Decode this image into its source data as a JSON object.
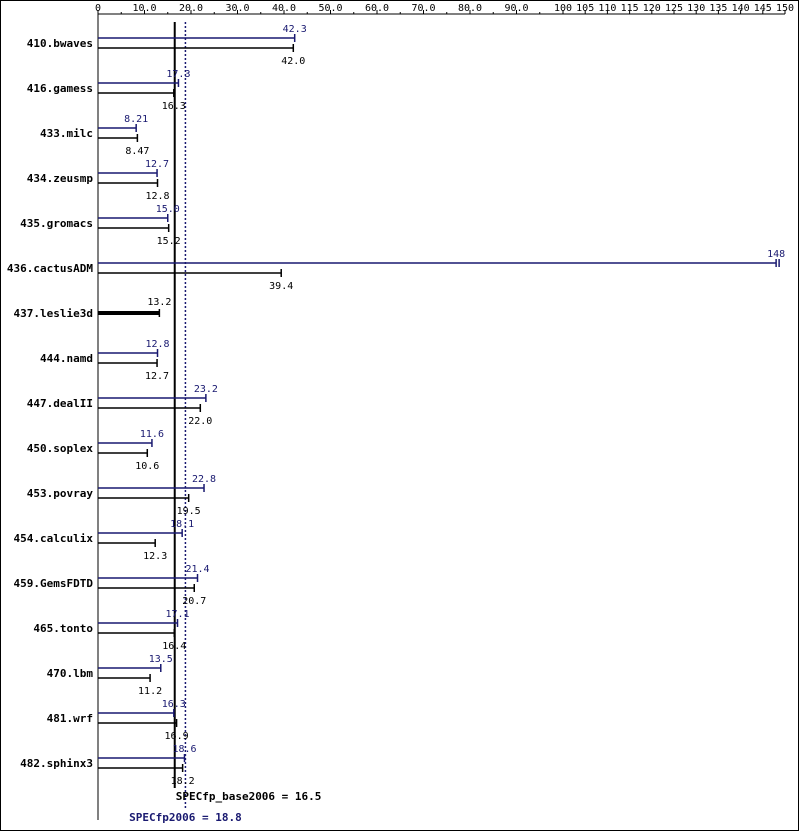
{
  "chart_data": {
    "type": "bar",
    "orientation": "horizontal",
    "x_ticks": [
      0,
      10.0,
      20.0,
      30.0,
      40.0,
      50.0,
      60.0,
      70.0,
      80.0,
      90.0,
      100,
      105,
      110,
      115,
      120,
      125,
      130,
      135,
      140,
      145,
      150
    ],
    "tick_labels": [
      "0",
      "10.0",
      "20.0",
      "30.0",
      "40.0",
      "50.0",
      "60.0",
      "70.0",
      "80.0",
      "90.0",
      "100",
      "105",
      "110",
      "115",
      "120",
      "125",
      "130",
      "135",
      "140",
      "145",
      "150"
    ],
    "xlim": [
      0,
      150
    ],
    "categories": [
      "410.bwaves",
      "416.gamess",
      "433.milc",
      "434.zeusmp",
      "435.gromacs",
      "436.cactusADM",
      "437.leslie3d",
      "444.namd",
      "447.dealII",
      "450.soplex",
      "453.povray",
      "454.calculix",
      "459.GemsFDTD",
      "465.tonto",
      "470.lbm",
      "481.wrf",
      "482.sphinx3"
    ],
    "series": [
      {
        "key": "peak",
        "color": "#191970",
        "values": [
          42.3,
          17.3,
          8.21,
          12.7,
          15.0,
          148,
          null,
          12.8,
          23.2,
          11.6,
          22.8,
          18.1,
          21.4,
          17.1,
          13.5,
          16.3,
          18.6
        ],
        "labels": [
          "42.3",
          "17.3",
          "8.21",
          "12.7",
          "15.0",
          "148",
          "",
          "12.8",
          "23.2",
          "11.6",
          "22.8",
          "18.1",
          "21.4",
          "17.1",
          "13.5",
          "16.3",
          "18.6"
        ]
      },
      {
        "key": "base",
        "color": "#000000",
        "values": [
          42.0,
          16.3,
          8.47,
          12.8,
          15.2,
          39.4,
          13.2,
          12.7,
          22.0,
          10.6,
          19.5,
          12.3,
          20.7,
          16.4,
          11.2,
          16.9,
          18.2
        ],
        "labels": [
          "42.0",
          "16.3",
          "8.47",
          "12.8",
          "15.2",
          "39.4",
          "13.2",
          "12.7",
          "22.0",
          "10.6",
          "19.5",
          "12.3",
          "20.7",
          "16.4",
          "11.2",
          "16.9",
          "18.2"
        ]
      }
    ],
    "summary": {
      "base": {
        "text": "SPECfp_base2006 = 16.5",
        "value": 16.5,
        "color": "#000000"
      },
      "peak": {
        "text": "SPECfp2006 = 18.8",
        "value": 18.8,
        "color": "#191970"
      }
    },
    "grid": false,
    "legend": "none"
  }
}
